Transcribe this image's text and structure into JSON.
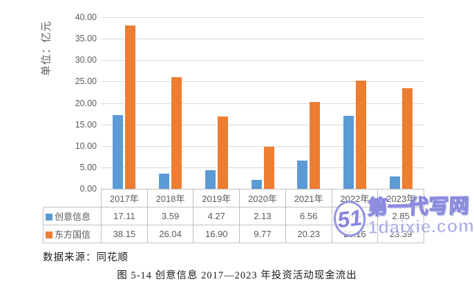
{
  "chart": {
    "y_axis_title": "单位：亿元",
    "y_ticks": [
      "40.00",
      "35.00",
      "30.00",
      "25.00",
      "20.00",
      "15.00",
      "10.00",
      "5.00",
      "0.00"
    ],
    "gridline_color": "#d9d9d9",
    "text_color": "#595959"
  },
  "chart_data": {
    "type": "bar",
    "title": "",
    "xlabel": "",
    "ylabel": "单位：亿元",
    "ylim": [
      0,
      40
    ],
    "ytick_step": 5,
    "grid": true,
    "legend_position": "table-left",
    "categories": [
      "2017年",
      "2018年",
      "2019年",
      "2020年",
      "2021年",
      "2022年",
      "2023年"
    ],
    "series": [
      {
        "name": "创意信息",
        "color": "#5B9BD5",
        "values": [
          17.11,
          3.59,
          4.27,
          2.13,
          6.56,
          16.98,
          2.85
        ]
      },
      {
        "name": "东方国信",
        "color": "#ED7D31",
        "values": [
          38.15,
          26.04,
          16.9,
          9.77,
          20.23,
          25.16,
          23.39
        ]
      }
    ]
  },
  "source_note": "数据来源：同花顺",
  "caption": "图 5-14 创意信息 2017—2023 年投资活动现金流出",
  "watermark": {
    "logo": "51",
    "title": "第一代写网",
    "domain": "1daixie.com",
    "color": "#8181DF"
  }
}
